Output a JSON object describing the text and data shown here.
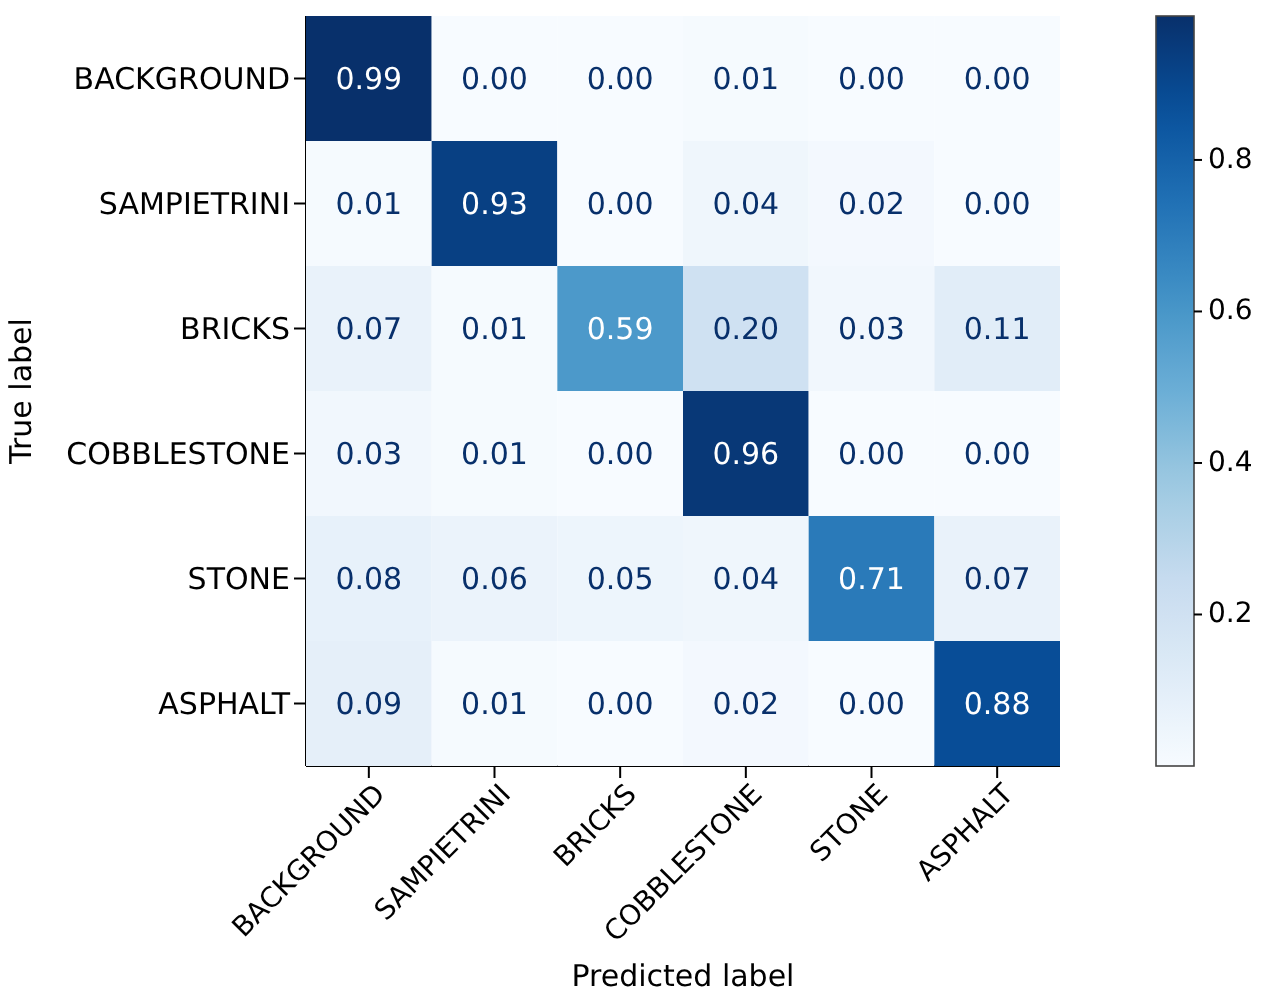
{
  "chart_data": {
    "type": "heatmap",
    "xlabel": "Predicted label",
    "ylabel": "True label",
    "categories": [
      "BACKGROUND",
      "SAMPIETRINI",
      "BRICKS",
      "COBBLESTONE",
      "STONE",
      "ASPHALT"
    ],
    "y_categories": [
      "BACKGROUND",
      "SAMPIETRINI",
      "BRICKS",
      "COBBLESTONE",
      "STONE",
      "ASPHALT"
    ],
    "cells": [
      [
        0.99,
        0.0,
        0.0,
        0.01,
        0.0,
        0.0
      ],
      [
        0.01,
        0.93,
        0.0,
        0.04,
        0.02,
        0.0
      ],
      [
        0.07,
        0.01,
        0.59,
        0.2,
        0.03,
        0.11
      ],
      [
        0.03,
        0.01,
        0.0,
        0.96,
        0.0,
        0.0
      ],
      [
        0.08,
        0.06,
        0.05,
        0.04,
        0.71,
        0.07
      ],
      [
        0.09,
        0.01,
        0.0,
        0.02,
        0.0,
        0.88
      ]
    ],
    "cell_labels": [
      [
        "0.99",
        "0.00",
        "0.00",
        "0.01",
        "0.00",
        "0.00"
      ],
      [
        "0.01",
        "0.93",
        "0.00",
        "0.04",
        "0.02",
        "0.00"
      ],
      [
        "0.07",
        "0.01",
        "0.59",
        "0.20",
        "0.03",
        "0.11"
      ],
      [
        "0.03",
        "0.01",
        "0.00",
        "0.96",
        "0.00",
        "0.00"
      ],
      [
        "0.08",
        "0.06",
        "0.05",
        "0.04",
        "0.71",
        "0.07"
      ],
      [
        "0.09",
        "0.01",
        "0.00",
        "0.02",
        "0.00",
        "0.88"
      ]
    ],
    "data_labels": true,
    "clim": [
      0.0,
      0.99
    ],
    "cticks": [
      0.2,
      0.4,
      0.6,
      0.8
    ]
  }
}
